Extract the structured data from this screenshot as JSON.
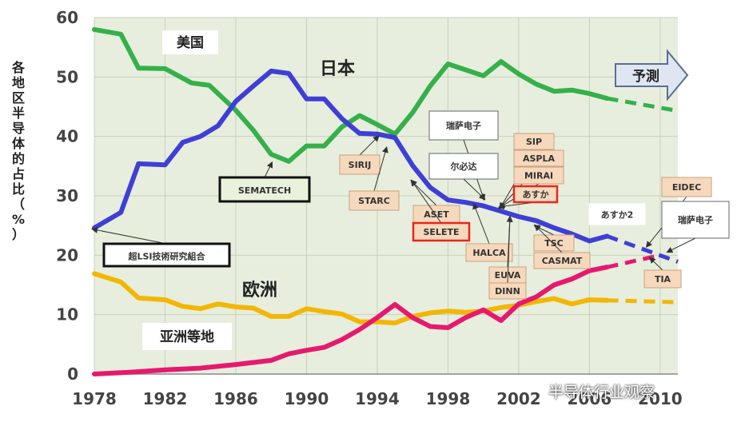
{
  "chart_data": {
    "type": "line",
    "ylabel": "各地区半导体的占比（%）",
    "ylim": [
      0,
      60
    ],
    "xlim": [
      1978,
      2011
    ],
    "yticks": [
      0,
      10,
      20,
      30,
      40,
      50,
      60
    ],
    "xticks": [
      1978,
      1982,
      1986,
      1990,
      1994,
      1998,
      2002,
      2006,
      2010
    ],
    "grid": true,
    "forecast_label": "予測",
    "series": [
      {
        "name": "美国",
        "color": "#35b04a",
        "values": [
          [
            1978,
            58
          ],
          [
            1979.5,
            57.2
          ],
          [
            1980.5,
            51.5
          ],
          [
            1982,
            51.4
          ],
          [
            1983.5,
            49
          ],
          [
            1984.5,
            48.6
          ],
          [
            1986,
            44.4
          ],
          [
            1987,
            41
          ],
          [
            1988,
            37
          ],
          [
            1989,
            35.8
          ],
          [
            1990,
            38.4
          ],
          [
            1991,
            38.4
          ],
          [
            1992,
            41.6
          ],
          [
            1993,
            43.5
          ],
          [
            1994,
            42
          ],
          [
            1995,
            40.4
          ],
          [
            1996,
            44
          ],
          [
            1997,
            48.5
          ],
          [
            1998,
            52.2
          ],
          [
            1999,
            51.2
          ],
          [
            2000,
            50.2
          ],
          [
            2001,
            52.6
          ],
          [
            2002,
            50.5
          ],
          [
            2003,
            48.8
          ],
          [
            2004,
            47.6
          ],
          [
            2005,
            47.8
          ],
          [
            2006,
            47.2
          ],
          [
            2007,
            46.4
          ]
        ],
        "forecast": [
          [
            2007,
            46.4
          ],
          [
            2011,
            44.3
          ]
        ]
      },
      {
        "name": "日本",
        "color": "#3f3fd6",
        "values": [
          [
            1978,
            24.6
          ],
          [
            1979.5,
            27.2
          ],
          [
            1980.5,
            35.4
          ],
          [
            1982,
            35.2
          ],
          [
            1983,
            39
          ],
          [
            1984,
            40
          ],
          [
            1985,
            41.8
          ],
          [
            1986,
            45.9
          ],
          [
            1987,
            48.5
          ],
          [
            1988,
            51
          ],
          [
            1989,
            50.6
          ],
          [
            1990,
            46.3
          ],
          [
            1991,
            46.3
          ],
          [
            1992,
            43
          ],
          [
            1993,
            40.5
          ],
          [
            1994,
            40.4
          ],
          [
            1995,
            39.8
          ],
          [
            1996,
            35.1
          ],
          [
            1997,
            31.4
          ],
          [
            1998,
            29.3
          ],
          [
            1999,
            28.9
          ],
          [
            2000,
            28.3
          ],
          [
            2001,
            27.4
          ],
          [
            2002,
            26.5
          ],
          [
            2003,
            25.8
          ],
          [
            2004,
            24.6
          ],
          [
            2005,
            23.6
          ],
          [
            2006,
            22.4
          ],
          [
            2007,
            23.2
          ]
        ],
        "forecast": [
          [
            2007,
            23.2
          ],
          [
            2011,
            18.9
          ]
        ]
      },
      {
        "name": "欧洲",
        "color": "#f2b705",
        "values": [
          [
            1978,
            16.9
          ],
          [
            1979.5,
            15.5
          ],
          [
            1980.5,
            12.8
          ],
          [
            1982,
            12.5
          ],
          [
            1983,
            11.4
          ],
          [
            1984,
            11
          ],
          [
            1985,
            11.8
          ],
          [
            1986,
            11.3
          ],
          [
            1987,
            11.1
          ],
          [
            1988,
            9.7
          ],
          [
            1989,
            9.7
          ],
          [
            1990,
            11
          ],
          [
            1991,
            10.5
          ],
          [
            1992,
            10.1
          ],
          [
            1993,
            8.8
          ],
          [
            1994,
            8.8
          ],
          [
            1995,
            8.6
          ],
          [
            1996,
            9.7
          ],
          [
            1997,
            10.3
          ],
          [
            1998,
            10.6
          ],
          [
            1999,
            10.4
          ],
          [
            2000,
            10.6
          ],
          [
            2001,
            11.2
          ],
          [
            2002,
            11.6
          ],
          [
            2003,
            12.2
          ],
          [
            2004,
            12.7
          ],
          [
            2005,
            11.8
          ],
          [
            2006,
            12.5
          ],
          [
            2007,
            12.4
          ]
        ],
        "forecast": [
          [
            2007,
            12.4
          ],
          [
            2011,
            12.1
          ]
        ]
      },
      {
        "name": "亚洲等地",
        "color": "#e6196e",
        "values": [
          [
            1978,
            0
          ],
          [
            1980,
            0.3
          ],
          [
            1982,
            0.7
          ],
          [
            1984,
            1
          ],
          [
            1986,
            1.6
          ],
          [
            1988,
            2.3
          ],
          [
            1989,
            3.4
          ],
          [
            1990,
            4
          ],
          [
            1991,
            4.5
          ],
          [
            1992,
            5.8
          ],
          [
            1993,
            7.5
          ],
          [
            1994,
            9.5
          ],
          [
            1995,
            11.7
          ],
          [
            1996,
            9.5
          ],
          [
            1997,
            8
          ],
          [
            1998,
            7.8
          ],
          [
            1999,
            9.5
          ],
          [
            2000,
            10.8
          ],
          [
            2001,
            9
          ],
          [
            2002,
            11.8
          ],
          [
            2003,
            13
          ],
          [
            2004,
            15
          ],
          [
            2005,
            16
          ],
          [
            2006,
            17.4
          ],
          [
            2007,
            18
          ]
        ],
        "forecast": [
          [
            2007,
            18
          ],
          [
            2010,
            20
          ]
        ]
      }
    ],
    "annotations": [
      {
        "text": "超LSI技術研究組合",
        "year": 1978,
        "value": 25
      },
      {
        "text": "SEMATECH",
        "year": 1988,
        "value": 36
      },
      {
        "text": "SIRIJ",
        "year": 1994,
        "value": 40.5
      },
      {
        "text": "STARC",
        "year": 1994.5,
        "value": 38.5
      },
      {
        "text": "ASET",
        "year": 1996,
        "value": 33
      },
      {
        "text": "SELETE",
        "year": 1996,
        "value": 33
      },
      {
        "text": "瑞萨电子",
        "year": 2000,
        "value": 29
      },
      {
        "text": "尔必达",
        "year": 2000,
        "value": 29
      },
      {
        "text": "HALCA",
        "year": 1999.5,
        "value": 29
      },
      {
        "text": "SIP",
        "year": 2001,
        "value": 27.5
      },
      {
        "text": "ASPLA",
        "year": 2001,
        "value": 27.5
      },
      {
        "text": "MIRAI",
        "year": 2001,
        "value": 27.5
      },
      {
        "text": "あすか",
        "year": 2001,
        "value": 27.5
      },
      {
        "text": "EUVA",
        "year": 2001.5,
        "value": 26.8
      },
      {
        "text": "DINN",
        "year": 2001.5,
        "value": 26.8
      },
      {
        "text": "TSC",
        "year": 2003,
        "value": 25.5
      },
      {
        "text": "CASMAT",
        "year": 2003,
        "value": 25.5
      },
      {
        "text": "あすか2",
        "year": 2006,
        "value": 22.5
      },
      {
        "text": "EIDEC",
        "year": 2009.3,
        "value": 21
      },
      {
        "text": "瑞萨电子",
        "year": 2010.5,
        "value": 20
      },
      {
        "text": "TIA",
        "year": 2009.5,
        "value": 20
      }
    ]
  },
  "watermark": "半导体行业观察"
}
